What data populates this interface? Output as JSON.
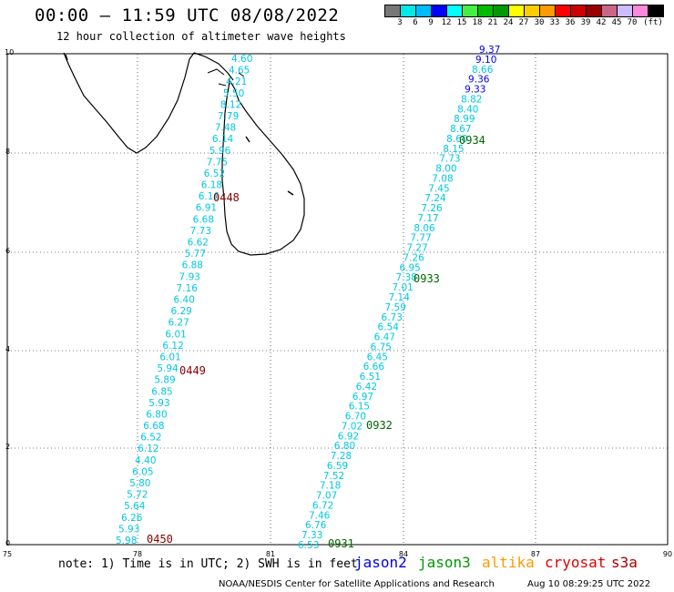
{
  "header": {
    "title": "00:00 – 11:59 UTC 08/08/2022",
    "subtitle": "12 hour collection of altimeter wave heights"
  },
  "legend": {
    "colors": [
      "#777777",
      "#00e8e8",
      "#00bbff",
      "#0000ff",
      "#00ffff",
      "#44ee44",
      "#00bb00",
      "#009900",
      "#ffff00",
      "#ffcc00",
      "#ff9900",
      "#ff0000",
      "#cc0000",
      "#990000",
      "#cc6688",
      "#ccbbff",
      "#ff88dd",
      "#000000"
    ],
    "labels": [
      "3",
      "6",
      "9",
      "12",
      "15",
      "18",
      "21",
      "24",
      "27",
      "30",
      "33",
      "36",
      "39",
      "42",
      "45",
      "70"
    ],
    "unit": "(ft)"
  },
  "axes": {
    "x_ticks": [
      "75",
      "78",
      "81",
      "84",
      "87",
      "90"
    ],
    "y_ticks": [
      "0",
      "2",
      "4",
      "6",
      "8",
      "10"
    ]
  },
  "tracks": [
    {
      "time": "0450",
      "time_color": "#880000",
      "values": [
        "5.98",
        "5.93",
        "6.26",
        "5.64",
        "5.72",
        "5.80",
        "6.05",
        "4.40",
        "6.12",
        "6.52",
        "6.68",
        "6.80",
        "5.93",
        "6.85",
        "5.89",
        "5.94",
        "6.01",
        "6.12",
        "6.01",
        "6.27",
        "6.29",
        "6.40",
        "7.16",
        "7.93",
        "6.88",
        "5.77",
        "6.62",
        "7.73",
        "6.68",
        "6.91",
        "6.16",
        "6.18",
        "6.52",
        "7.75",
        "5.96",
        "6.14",
        "7.48",
        "7.79",
        "8.12",
        "5.50",
        "4.21",
        "4.65",
        "4.60"
      ],
      "colors": [
        "c",
        "c",
        "c",
        "c",
        "c",
        "c",
        "c",
        "c",
        "c",
        "c",
        "c",
        "c",
        "c",
        "c",
        "c",
        "c",
        "c",
        "c",
        "c",
        "c",
        "c",
        "c",
        "c",
        "c",
        "c",
        "c",
        "c",
        "c",
        "c",
        "c",
        "c",
        "c",
        "c",
        "c",
        "c",
        "c",
        "c",
        "c",
        "c",
        "c",
        "c",
        "c",
        "c"
      ]
    },
    {
      "time": "0931",
      "time_color": "#006600",
      "values": [
        "6.53",
        "7.33",
        "6.76",
        "7.46",
        "6.72",
        "7.07",
        "7.18",
        "7.52",
        "6.59",
        "7.28",
        "6.80",
        "6.92",
        "7.02",
        "6.70",
        "6.15",
        "6.97",
        "6.42",
        "6.51",
        "6.66",
        "6.45",
        "6.75",
        "6.47",
        "6.54",
        "6.73",
        "7.59",
        "7.14",
        "7.01",
        "7.38",
        "6.95",
        "7.26",
        "7.27",
        "7.77",
        "8.06",
        "7.17",
        "7.26",
        "7.24",
        "7.45",
        "7.08",
        "8.00",
        "7.73",
        "8.15",
        "8.60",
        "8.67",
        "8.99",
        "8.40",
        "8.82",
        "9.33",
        "9.36",
        "8.66",
        "9.10",
        "9.37"
      ],
      "colors": [
        "c",
        "c",
        "c",
        "c",
        "c",
        "c",
        "c",
        "c",
        "c",
        "c",
        "c",
        "c",
        "c",
        "c",
        "c",
        "c",
        "c",
        "c",
        "c",
        "c",
        "c",
        "c",
        "c",
        "c",
        "c",
        "c",
        "c",
        "c",
        "c",
        "c",
        "c",
        "c",
        "c",
        "c",
        "c",
        "c",
        "c",
        "c",
        "c",
        "c",
        "c",
        "c",
        "c",
        "c",
        "c",
        "c",
        "b",
        "b",
        "c",
        "b",
        "b"
      ]
    }
  ],
  "time_labels": [
    {
      "text": "0448",
      "color": "#880000"
    },
    {
      "text": "0449",
      "color": "#880000"
    },
    {
      "text": "0450",
      "color": "#880000"
    },
    {
      "text": "0931",
      "color": "#006600"
    },
    {
      "text": "0932",
      "color": "#006600"
    },
    {
      "text": "0933",
      "color": "#006600"
    },
    {
      "text": "0934",
      "color": "#006600"
    }
  ],
  "note": "note:  1) Time is in UTC;  2) SWH is in feet",
  "satellites": [
    {
      "name": "jason2",
      "color": "#0000ee"
    },
    {
      "name": "jason3",
      "color": "#009900"
    },
    {
      "name": "altika",
      "color": "#ff9900"
    },
    {
      "name": "cryosat",
      "color": "#dd0000"
    },
    {
      "name": "s3a",
      "color": "#aa0000"
    }
  ],
  "credit": "NOAA/NESDIS Center for Satellite Applications and Research",
  "credit_time": "Aug 10 08:29:25 UTC 2022",
  "palette": {
    "c": "#00c8e0",
    "b": "#0000ee"
  }
}
